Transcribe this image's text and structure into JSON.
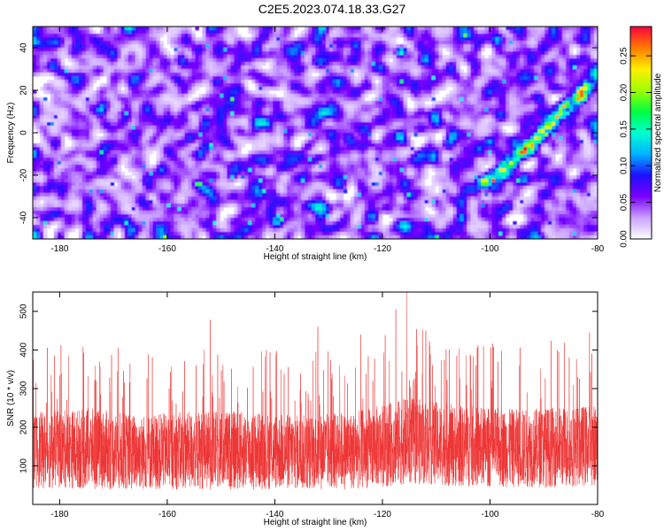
{
  "title": "C2E5.2023.074.18.33.G27",
  "chart_data": [
    {
      "type": "heatmap",
      "xlabel": "Height of straight line (km)",
      "ylabel": "Frequency (Hz)",
      "xlim": [
        -185,
        -80
      ],
      "ylim": [
        -50,
        50
      ],
      "xticks": [
        -180,
        -160,
        -140,
        -120,
        -100,
        -80
      ],
      "yticks": [
        -40,
        -20,
        0,
        20,
        40
      ],
      "colorbar": {
        "label": "Normalized spectral amplitude",
        "range": [
          0,
          0.29
        ],
        "ticks": [
          0.0,
          0.05,
          0.1,
          0.15,
          0.2,
          0.25
        ],
        "tick_labels": [
          "0.00",
          "0.05",
          "0.10",
          "0.15",
          "0.20",
          "0.25"
        ],
        "colors": [
          "#ffffff",
          "#c9a0ff",
          "#7a00ff",
          "#1f10ff",
          "#00b3ff",
          "#00ffd0",
          "#00ff40",
          "#a0ff00",
          "#ffee00",
          "#ff7a00",
          "#ff0040"
        ]
      },
      "features": {
        "background_amplitude": [
          0.02,
          0.07
        ],
        "diagonal_ridge": {
          "points": [
            [
              -101,
              -24
            ],
            [
              -98,
              -18
            ],
            [
              -94,
              -8
            ],
            [
              -91,
              -2
            ],
            [
              -88,
              6
            ],
            [
              -86,
              12
            ],
            [
              -84,
              16
            ],
            [
              -82,
              21
            ]
          ],
          "amplitude": [
            0.12,
            0.27
          ]
        },
        "hot_spots": [
          {
            "x": -116.5,
            "y": 38,
            "amplitude": 0.15
          },
          {
            "x": -101,
            "y": -23,
            "amplitude": 0.25
          }
        ]
      }
    },
    {
      "type": "line",
      "xlabel": "Height of straight line (km)",
      "ylabel": "SNR (10 * v/v)",
      "xlim": [
        -185,
        -80
      ],
      "ylim": [
        0,
        550
      ],
      "xticks": [
        -180,
        -160,
        -140,
        -120,
        -100,
        -80
      ],
      "yticks": [
        100,
        200,
        300,
        400,
        500
      ],
      "color": "#ee3333",
      "envelope": {
        "x": [
          -185,
          -175,
          -165,
          -155,
          -145,
          -135,
          -125,
          -115,
          -105,
          -95,
          -85,
          -80
        ],
        "mean": [
          140,
          145,
          135,
          140,
          140,
          135,
          140,
          165,
          150,
          145,
          150,
          155
        ],
        "spread": [
          130,
          140,
          130,
          135,
          135,
          130,
          135,
          150,
          140,
          135,
          140,
          140
        ]
      },
      "peaks": [
        {
          "x": -115.5,
          "y": 550
        },
        {
          "x": -117.5,
          "y": 505
        },
        {
          "x": -152,
          "y": 478
        },
        {
          "x": -132,
          "y": 460
        },
        {
          "x": -124,
          "y": 440
        },
        {
          "x": -81.5,
          "y": 445
        }
      ]
    }
  ]
}
